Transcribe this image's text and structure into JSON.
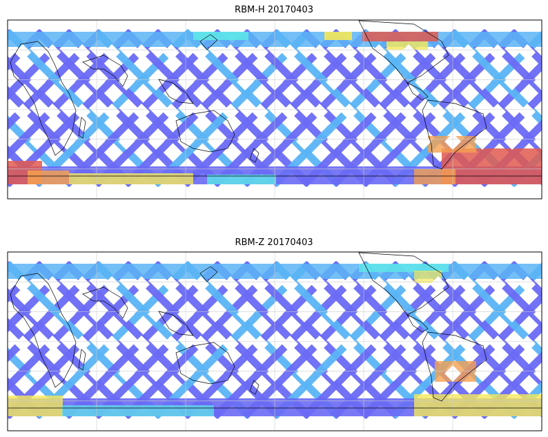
{
  "panels": [
    {
      "title": "RBM-H 20170403"
    },
    {
      "title": "RBM-Z 20170403"
    }
  ],
  "colors": {
    "track_base": "#6a6af5",
    "track_mid": "#5ab4f5",
    "cyan": "#5ee8e8",
    "yellow": "#f5e85a",
    "orange": "#f5a050",
    "red": "#e05a50",
    "land_outline": "#000000",
    "grid": "#cccccc"
  }
}
